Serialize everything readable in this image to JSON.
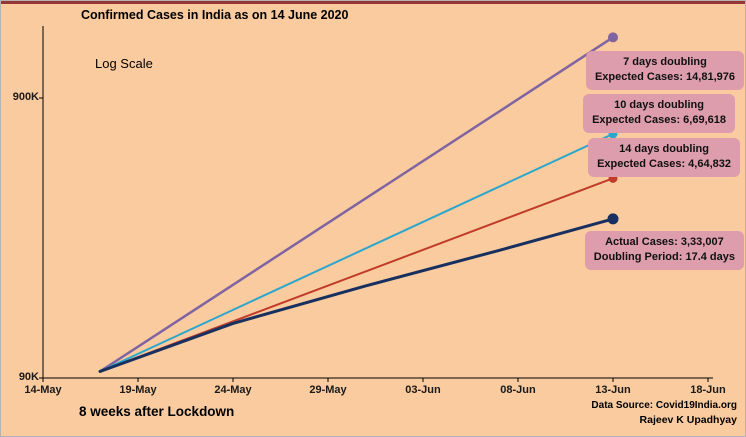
{
  "annotations": {
    "scale": "Log Scale",
    "lockdown": "8 weeks after Lockdown",
    "source": "Data Source: Covid19India.org",
    "author": "Rajeev K Upadhyay"
  },
  "colors": {
    "background": "#F9CB9E",
    "top_strip": "#943634",
    "callout_bg": "#DD9DAD",
    "axis": "#000000"
  },
  "chart_data": {
    "type": "line",
    "title": "Confirmed Cases in India as on 14 June 2020",
    "scale": "log",
    "x_axis": {
      "unit": "date",
      "ticks": [
        {
          "label": "14-May",
          "day": 0
        },
        {
          "label": "19-May",
          "day": 5
        },
        {
          "label": "24-May",
          "day": 10
        },
        {
          "label": "29-May",
          "day": 15
        },
        {
          "label": "03-Jun",
          "day": 20
        },
        {
          "label": "08-Jun",
          "day": 25
        },
        {
          "label": "13-Jun",
          "day": 30
        },
        {
          "label": "18-Jun",
          "day": 35
        }
      ]
    },
    "y_axis": {
      "ticks": [
        {
          "label": "900K",
          "value": 900000
        },
        {
          "label": "90K",
          "value": 90000
        }
      ],
      "range": [
        90000,
        1600000
      ],
      "grid": false
    },
    "legend_position": "right-callouts",
    "series": [
      {
        "name": "7 days doubling",
        "color": "#8064A2",
        "width": 2.5,
        "points": [
          [
            3,
            95000
          ],
          [
            30,
            1481976
          ]
        ]
      },
      {
        "name": "10 days doubling",
        "color": "#2BA7CD",
        "width": 2,
        "points": [
          [
            3,
            95000
          ],
          [
            30,
            669618
          ]
        ]
      },
      {
        "name": "14 days doubling",
        "color": "#C13B2A",
        "width": 2,
        "points": [
          [
            3,
            95000
          ],
          [
            30,
            464832
          ]
        ]
      },
      {
        "name": "Actual cases",
        "color": "#17305F",
        "width": 3,
        "points": [
          [
            3,
            95000
          ],
          [
            10,
            141000
          ],
          [
            17,
            192000
          ],
          [
            24,
            257000
          ],
          [
            30,
            333007
          ]
        ]
      }
    ],
    "callouts": [
      {
        "line1": "7 days doubling",
        "line2": "Expected Cases: 14,81,976"
      },
      {
        "line1": "10 days doubling",
        "line2": "Expected Cases: 6,69,618"
      },
      {
        "line1": "14 days doubling",
        "line2": "Expected Cases: 4,64,832"
      },
      {
        "line1": "Actual Cases: 3,33,007",
        "line2": "Doubling Period: 17.4 days"
      }
    ]
  }
}
